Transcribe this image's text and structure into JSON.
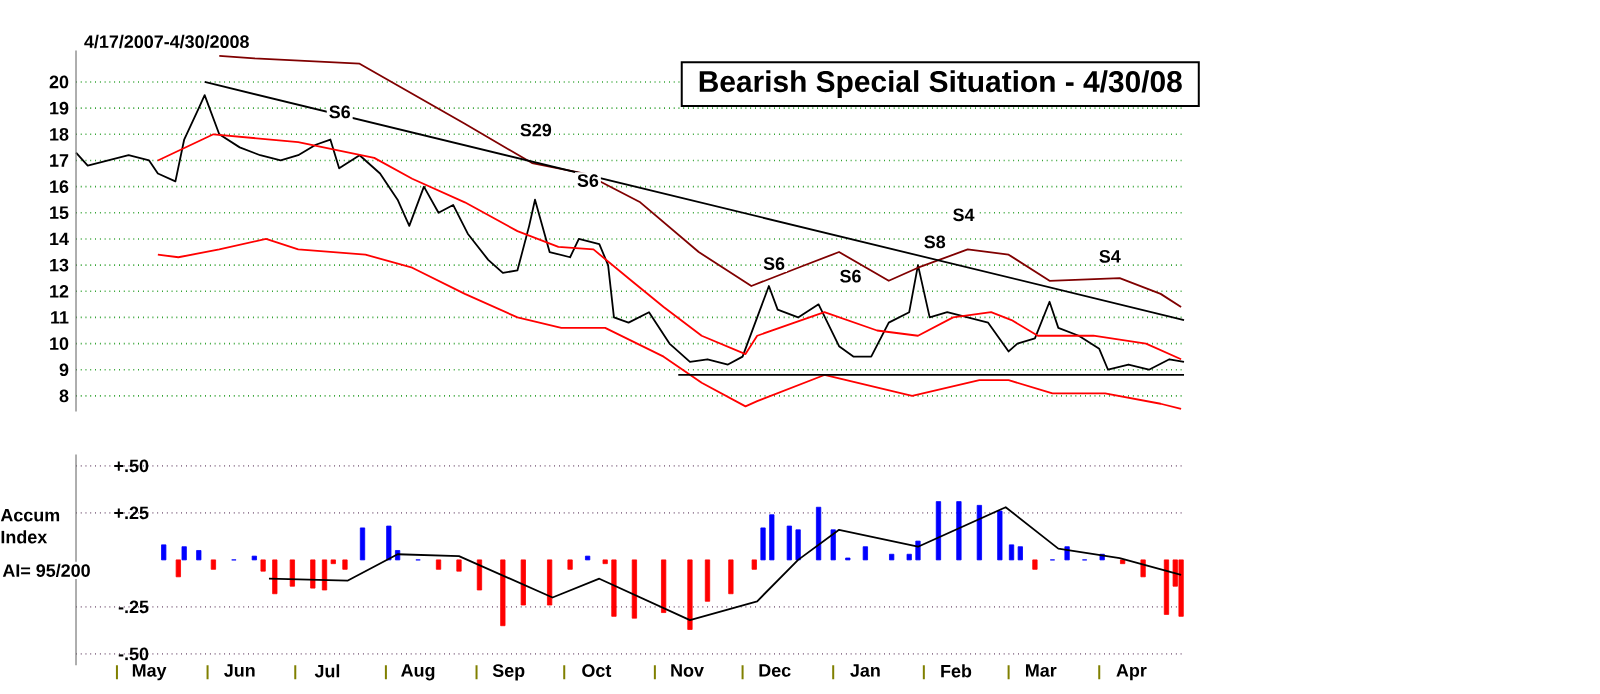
{
  "chart_data": [
    {
      "type": "line",
      "title": "Bearish Special Situation - 4/30/08",
      "subtitle": "4/17/2007-4/30/2008",
      "xlim": [
        "2007-04-17",
        "2008-04-30"
      ],
      "ylim": [
        7.4,
        21.2
      ],
      "yticks": [
        8,
        9,
        10,
        11,
        12,
        13,
        14,
        15,
        16,
        17,
        18,
        19,
        20
      ],
      "grid": "y",
      "tick_labels": "y",
      "series": [
        {
          "color": "#000000",
          "x": [
            "2007-04-17",
            "2007-04-21",
            "2007-04-28",
            "2007-05-05",
            "2007-05-12",
            "2007-05-15",
            "2007-05-21",
            "2007-05-24",
            "2007-05-29",
            "2007-05-31",
            "2007-06-05",
            "2007-06-12",
            "2007-06-19",
            "2007-06-26",
            "2007-07-02",
            "2007-07-08",
            "2007-07-13",
            "2007-07-16",
            "2007-07-23",
            "2007-07-30",
            "2007-08-05",
            "2007-08-09",
            "2007-08-14",
            "2007-08-19",
            "2007-08-24",
            "2007-08-29",
            "2007-09-05",
            "2007-09-10",
            "2007-09-15",
            "2007-09-19",
            "2007-09-21",
            "2007-09-26",
            "2007-10-03",
            "2007-10-06",
            "2007-10-13",
            "2007-10-16",
            "2007-10-18",
            "2007-10-23",
            "2007-10-30",
            "2007-11-06",
            "2007-11-13",
            "2007-11-19",
            "2007-11-26",
            "2007-12-01",
            "2007-12-06",
            "2007-12-10",
            "2007-12-13",
            "2007-12-20",
            "2007-12-27",
            "2008-01-03",
            "2008-01-08",
            "2008-01-14",
            "2008-01-20",
            "2008-01-27",
            "2008-01-30",
            "2008-02-03",
            "2008-02-09",
            "2008-02-16",
            "2008-02-23",
            "2008-03-01",
            "2008-03-04",
            "2008-03-10",
            "2008-03-15",
            "2008-03-18",
            "2008-03-25",
            "2008-04-01",
            "2008-04-04",
            "2008-04-11",
            "2008-04-18",
            "2008-04-25",
            "2008-04-30"
          ],
          "values": [
            17.3,
            16.8,
            17.0,
            17.2,
            17.0,
            16.5,
            16.2,
            17.8,
            19.0,
            19.5,
            18.0,
            17.5,
            17.2,
            17.0,
            17.2,
            17.6,
            17.8,
            16.7,
            17.2,
            16.5,
            15.5,
            14.5,
            16.0,
            15.0,
            15.3,
            14.2,
            13.2,
            12.7,
            12.8,
            14.5,
            15.5,
            13.5,
            13.3,
            14.0,
            13.8,
            13.0,
            11.0,
            10.8,
            11.2,
            10.0,
            9.3,
            9.4,
            9.2,
            9.5,
            11.0,
            12.2,
            11.3,
            11.0,
            11.5,
            9.9,
            9.5,
            9.5,
            10.8,
            11.2,
            13.0,
            11.0,
            11.2,
            11.0,
            10.8,
            9.7,
            10.0,
            10.2,
            11.6,
            10.6,
            10.3,
            9.8,
            9.0,
            9.2,
            9.0,
            9.4,
            9.3
          ]
        },
        {
          "color": "#800000",
          "x": [
            "2007-06-05",
            "2007-06-17",
            "2007-07-23",
            "2007-08-28",
            "2007-09-20",
            "2007-10-08",
            "2007-10-27",
            "2007-11-16",
            "2007-12-04",
            "2007-12-20",
            "2008-01-03",
            "2008-01-20",
            "2008-01-30",
            "2008-02-16",
            "2008-03-01",
            "2008-03-15",
            "2008-04-08",
            "2008-04-22",
            "2008-04-29"
          ],
          "values": [
            21.0,
            20.9,
            20.7,
            18.4,
            16.9,
            16.5,
            15.4,
            13.5,
            12.2,
            12.9,
            13.5,
            12.4,
            12.9,
            13.6,
            13.4,
            12.4,
            12.5,
            11.9,
            11.4
          ]
        },
        {
          "color": "#ff0000",
          "x": [
            "2007-05-15",
            "2007-06-03",
            "2007-07-02",
            "2007-07-28",
            "2007-08-10",
            "2007-08-28",
            "2007-09-15",
            "2007-09-29",
            "2007-10-11",
            "2007-10-24",
            "2007-11-04",
            "2007-11-17",
            "2007-12-02",
            "2007-12-06",
            "2007-12-29",
            "2008-01-16",
            "2008-01-30",
            "2008-02-11",
            "2008-02-24",
            "2008-03-02",
            "2008-03-11",
            "2008-03-30",
            "2008-04-17",
            "2008-04-29"
          ],
          "values": [
            17.0,
            18.0,
            17.7,
            17.1,
            16.3,
            15.4,
            14.3,
            13.7,
            13.6,
            12.4,
            11.4,
            10.3,
            9.6,
            10.3,
            11.2,
            10.5,
            10.3,
            11.0,
            11.2,
            10.9,
            10.3,
            10.3,
            10.0,
            9.4
          ]
        },
        {
          "color": "#ff0000",
          "x": [
            "2007-05-15",
            "2007-05-22",
            "2007-06-05",
            "2007-06-21",
            "2007-07-02",
            "2007-07-25",
            "2007-08-10",
            "2007-08-28",
            "2007-09-15",
            "2007-09-30",
            "2007-10-15",
            "2007-11-04",
            "2007-11-17",
            "2007-12-02",
            "2007-12-06",
            "2007-12-29",
            "2008-01-28",
            "2008-02-20",
            "2008-03-01",
            "2008-03-16",
            "2008-04-03",
            "2008-04-22",
            "2008-04-29"
          ],
          "values": [
            13.4,
            13.3,
            13.6,
            14.0,
            13.6,
            13.4,
            12.9,
            11.9,
            11.0,
            10.6,
            10.6,
            9.5,
            8.5,
            7.6,
            7.8,
            8.8,
            8.0,
            8.6,
            8.6,
            8.1,
            8.1,
            7.7,
            7.5
          ]
        },
        {
          "color": "#000000",
          "x": [
            "2007-05-31",
            "2008-04-30"
          ],
          "values": [
            20.0,
            10.9
          ]
        },
        {
          "color": "#000000",
          "x": [
            "2007-11-09",
            "2008-04-30"
          ],
          "values": [
            8.8,
            8.8
          ]
        }
      ],
      "annotations": [
        "S6",
        "S29",
        "S6",
        "S6",
        "S6",
        "S4",
        "S8",
        "S4"
      ]
    },
    {
      "type": "bar",
      "ylabel": "Accum Index",
      "annotations": [
        "AI= 95/200"
      ],
      "xlim": [
        "2007-04-17",
        "2008-04-30"
      ],
      "ylim": [
        -0.56,
        0.56
      ],
      "xticks": [
        {
          "value": "2007-05-01",
          "label": null
        },
        {
          "value": "2007-06-01",
          "label": null
        },
        {
          "value": "2007-07-01",
          "label": null
        },
        {
          "value": "2007-08-01",
          "label": null
        },
        {
          "value": "2007-09-01",
          "label": null
        },
        {
          "value": "2007-10-01",
          "label": null
        },
        {
          "value": "2007-11-01",
          "label": null
        },
        {
          "value": "2007-12-01",
          "label": null
        },
        {
          "value": "2008-01-01",
          "label": null
        },
        {
          "value": "2008-02-01",
          "label": null
        },
        {
          "value": "2008-03-01",
          "label": null
        },
        {
          "value": "2008-04-01",
          "label": null
        },
        {
          "value": "2007-05-12",
          "label": "May"
        },
        {
          "value": "2007-06-12",
          "label": "Jun"
        },
        {
          "value": "2007-07-12",
          "label": "Jul"
        },
        {
          "value": "2007-08-12",
          "label": "Aug"
        },
        {
          "value": "2007-09-12",
          "label": "Sep"
        },
        {
          "value": "2007-10-12",
          "label": "Oct"
        },
        {
          "value": "2007-11-12",
          "label": "Nov"
        },
        {
          "value": "2007-12-12",
          "label": "Dec"
        },
        {
          "value": "2008-01-12",
          "label": "Jan"
        },
        {
          "value": "2008-02-12",
          "label": "Feb"
        },
        {
          "value": "2008-03-12",
          "label": "Mar"
        },
        {
          "value": "2008-04-12",
          "label": "Apr"
        }
      ],
      "yticks": [
        {
          "value": 0.5,
          "label": "+.50"
        },
        {
          "value": 0.25,
          "label": "+.25"
        },
        {
          "value": -0.25,
          "label": "-.25"
        },
        {
          "value": -0.5,
          "label": "-.50"
        }
      ],
      "grid": "y",
      "series": [
        {
          "type": "bar",
          "x": [
            "2007-05-17",
            "2007-05-22",
            "2007-05-24",
            "2007-05-29",
            "2007-06-03",
            "2007-06-10",
            "2007-06-17",
            "2007-06-20",
            "2007-06-24",
            "2007-06-30",
            "2007-07-07",
            "2007-07-11",
            "2007-07-14",
            "2007-07-18",
            "2007-07-24",
            "2007-08-02",
            "2007-08-05",
            "2007-08-12",
            "2007-08-19",
            "2007-08-26",
            "2007-09-02",
            "2007-09-10",
            "2007-09-17",
            "2007-09-26",
            "2007-10-03",
            "2007-10-09",
            "2007-10-15",
            "2007-10-18",
            "2007-10-25",
            "2007-11-04",
            "2007-11-13",
            "2007-11-19",
            "2007-11-27",
            "2007-12-05",
            "2007-12-08",
            "2007-12-11",
            "2007-12-17",
            "2007-12-20",
            "2007-12-27",
            "2008-01-01",
            "2008-01-06",
            "2008-01-12",
            "2008-01-21",
            "2008-01-27",
            "2008-01-30",
            "2008-02-06",
            "2008-02-13",
            "2008-02-20",
            "2008-02-27",
            "2008-03-02",
            "2008-03-05",
            "2008-03-10",
            "2008-03-16",
            "2008-03-21",
            "2008-03-27",
            "2008-04-02",
            "2008-04-09",
            "2008-04-16",
            "2008-04-24",
            "2008-04-27",
            "2008-04-29"
          ],
          "values": [
            0.08,
            -0.09,
            0.07,
            0.05,
            -0.05,
            0.0,
            0.02,
            -0.06,
            -0.18,
            -0.14,
            -0.15,
            -0.16,
            -0.02,
            -0.05,
            0.17,
            0.18,
            0.05,
            0.0,
            -0.05,
            -0.06,
            -0.16,
            -0.35,
            -0.24,
            -0.24,
            -0.05,
            0.02,
            -0.02,
            -0.3,
            -0.31,
            -0.28,
            -0.37,
            -0.22,
            -0.18,
            -0.05,
            0.17,
            0.24,
            0.18,
            0.16,
            0.28,
            0.16,
            0.01,
            0.07,
            0.03,
            0.03,
            0.1,
            0.31,
            0.31,
            0.29,
            0.26,
            0.08,
            0.07,
            -0.05,
            0.0,
            0.07,
            0.0,
            0.03,
            -0.02,
            -0.09,
            -0.29,
            -0.14,
            -0.3
          ],
          "colors": [
            "#0000ff",
            "#ff0000",
            "#0000ff",
            "#0000ff",
            "#ff0000",
            "#0000ff",
            "#0000ff",
            "#ff0000",
            "#ff0000",
            "#ff0000",
            "#ff0000",
            "#ff0000",
            "#ff0000",
            "#ff0000",
            "#0000ff",
            "#0000ff",
            "#0000ff",
            "#0000ff",
            "#ff0000",
            "#ff0000",
            "#ff0000",
            "#ff0000",
            "#ff0000",
            "#ff0000",
            "#ff0000",
            "#0000ff",
            "#ff0000",
            "#ff0000",
            "#ff0000",
            "#ff0000",
            "#ff0000",
            "#ff0000",
            "#ff0000",
            "#ff0000",
            "#0000ff",
            "#0000ff",
            "#0000ff",
            "#0000ff",
            "#0000ff",
            "#0000ff",
            "#0000ff",
            "#0000ff",
            "#0000ff",
            "#0000ff",
            "#0000ff",
            "#0000ff",
            "#0000ff",
            "#0000ff",
            "#0000ff",
            "#0000ff",
            "#0000ff",
            "#ff0000",
            "#0000ff",
            "#0000ff",
            "#0000ff",
            "#0000ff",
            "#ff0000",
            "#ff0000",
            "#ff0000",
            "#ff0000",
            "#ff0000"
          ]
        },
        {
          "type": "line",
          "color": "#000000",
          "x": [
            "2007-06-22",
            "2007-07-19",
            "2007-08-05",
            "2007-08-26",
            "2007-09-27",
            "2007-10-13",
            "2007-11-13",
            "2007-12-06",
            "2007-12-20",
            "2008-01-03",
            "2008-01-30",
            "2008-02-29",
            "2008-03-18",
            "2008-04-08",
            "2008-04-29"
          ],
          "values": [
            -0.1,
            -0.11,
            0.03,
            0.02,
            -0.2,
            -0.1,
            -0.32,
            -0.22,
            0.0,
            0.16,
            0.07,
            0.28,
            0.06,
            0.01,
            -0.08
          ]
        }
      ]
    }
  ]
}
